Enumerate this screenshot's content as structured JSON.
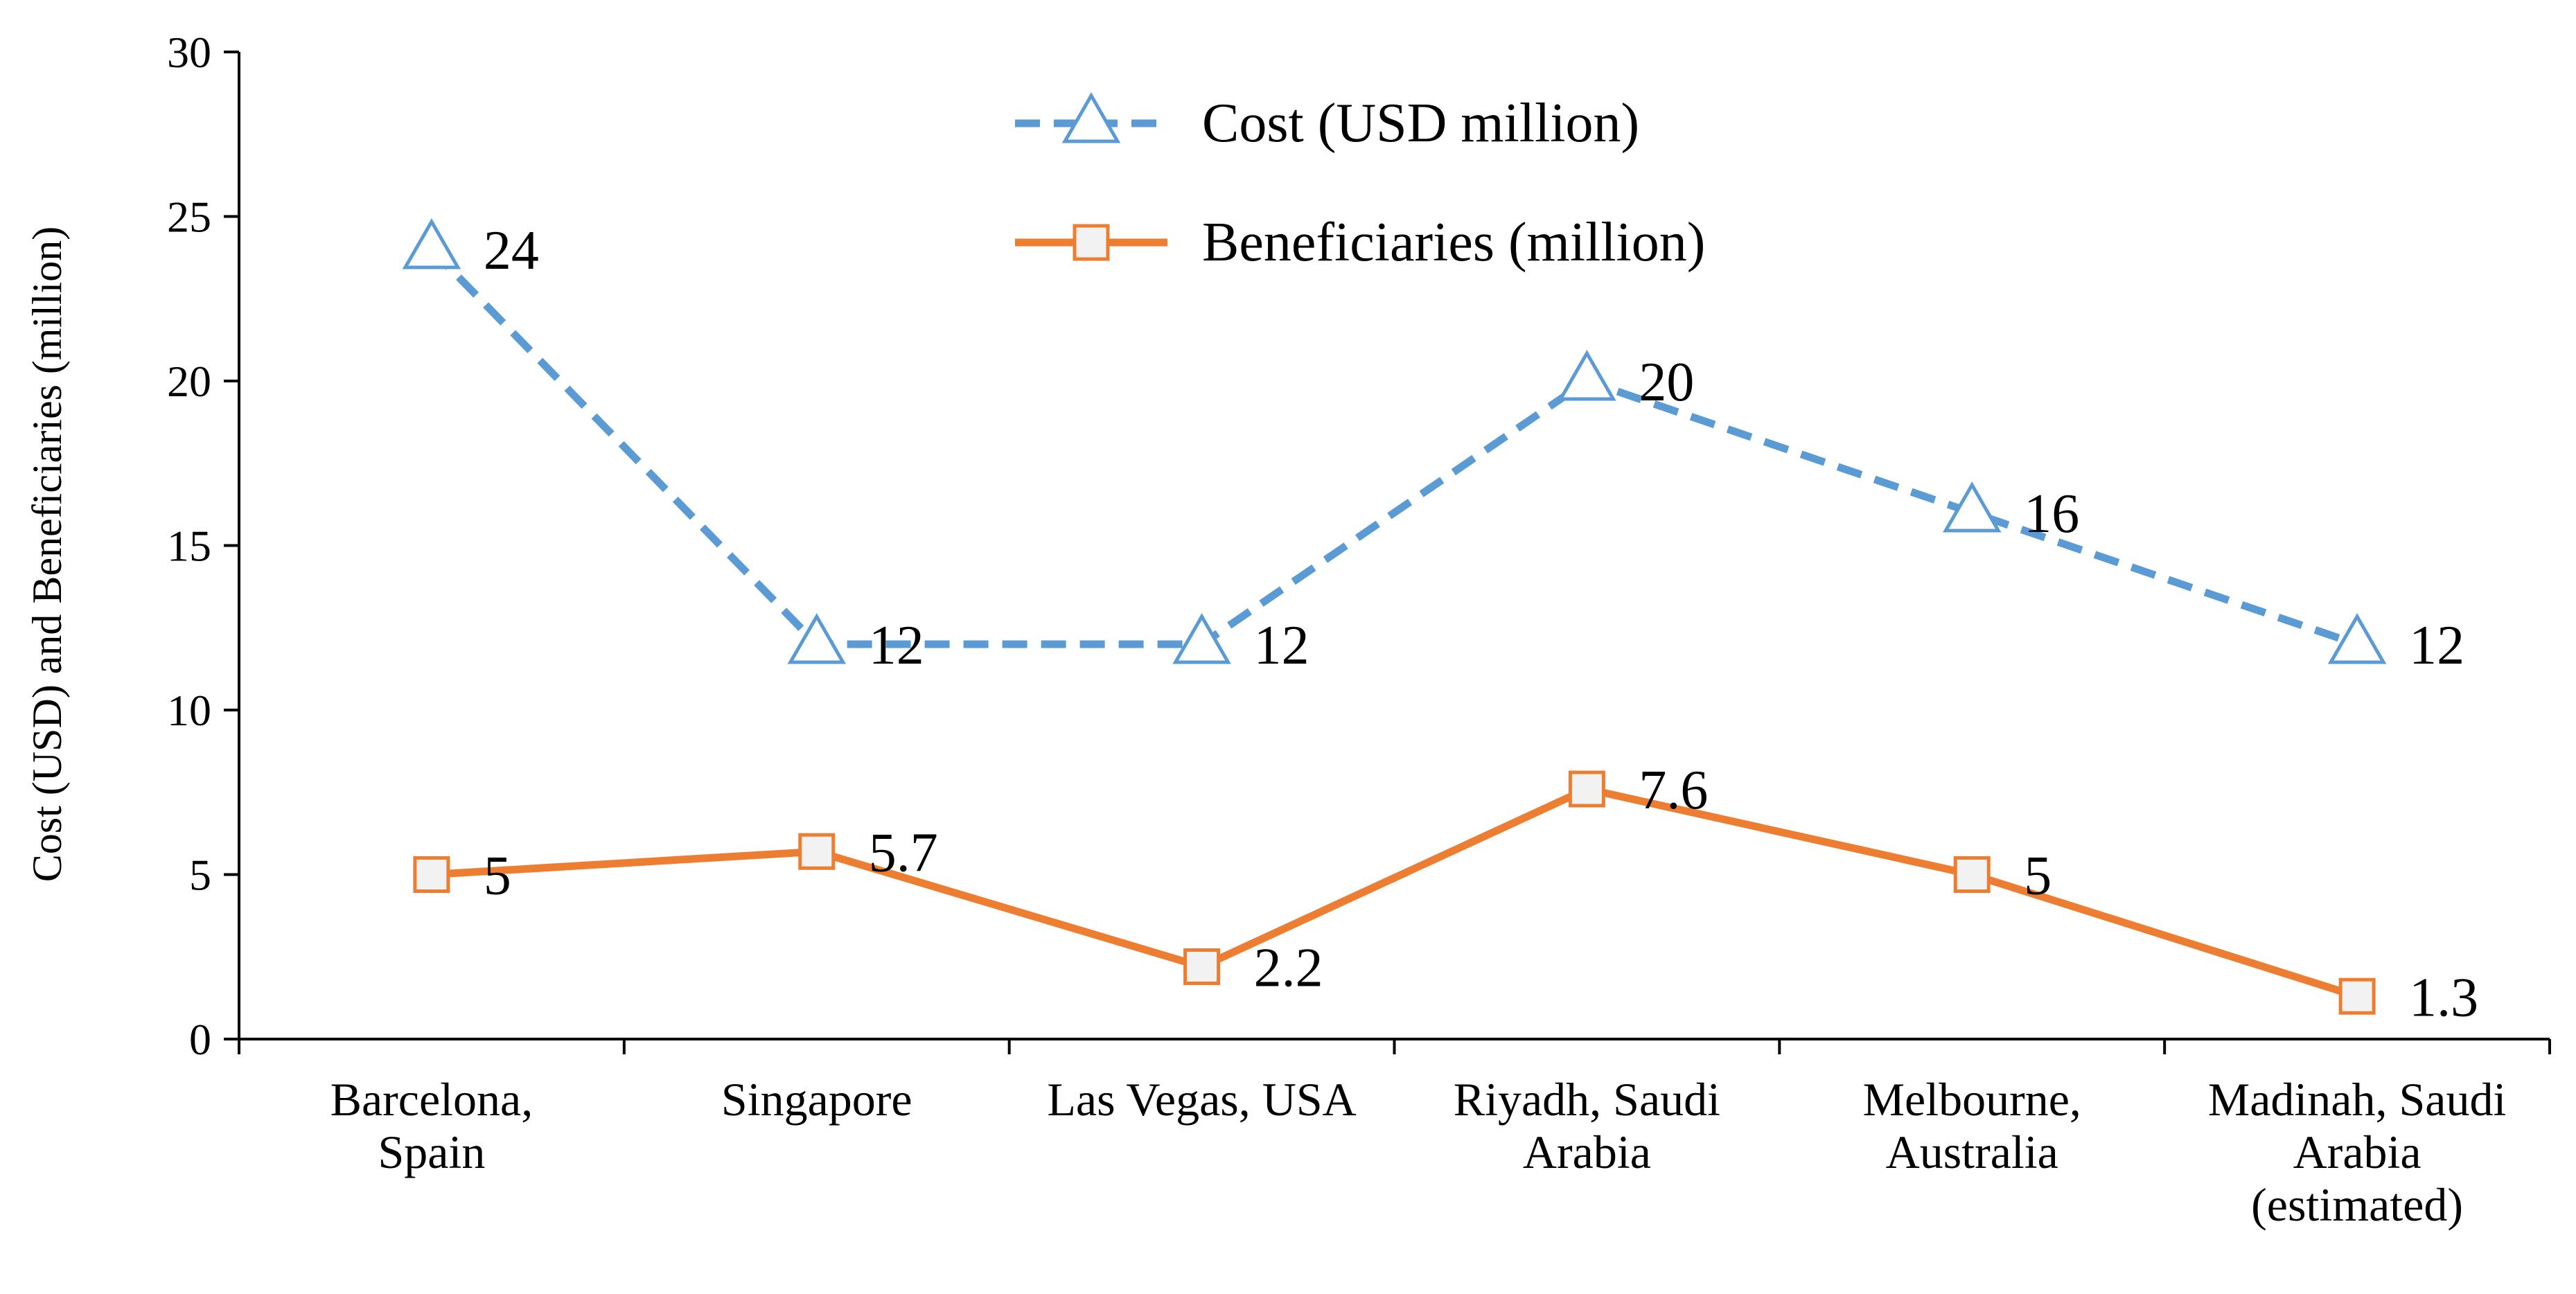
{
  "chart_data": {
    "type": "line",
    "title": "",
    "xlabel": "",
    "ylabel": "Cost (USD) and Beneficiaries (million)",
    "ylim": [
      0,
      30
    ],
    "yticks": [
      0,
      5,
      10,
      15,
      20,
      25,
      30
    ],
    "grid": false,
    "legend_position": "top-center",
    "categories": [
      [
        "Barcelona,",
        "Spain"
      ],
      [
        "Singapore"
      ],
      [
        "Las Vegas, USA"
      ],
      [
        "Riyadh, Saudi",
        "Arabia"
      ],
      [
        "Melbourne,",
        "Australia"
      ],
      [
        "Madinah, Saudi",
        "Arabia",
        "(estimated)"
      ]
    ],
    "series": [
      {
        "name": "Cost (USD million)",
        "values": [
          24,
          12,
          12,
          20,
          16,
          12
        ],
        "labels": [
          "24",
          "12",
          "12",
          "20",
          "16",
          "12"
        ],
        "color": "#5B9BD5",
        "marker": "triangle",
        "dashed": true
      },
      {
        "name": "Beneficiaries (million)",
        "values": [
          5,
          5.7,
          2.2,
          7.6,
          5,
          1.3
        ],
        "labels": [
          "5",
          "5.7",
          "2.2",
          "7.6",
          "5",
          "1.3"
        ],
        "color": "#ED7D31",
        "marker": "square",
        "dashed": false
      }
    ]
  }
}
